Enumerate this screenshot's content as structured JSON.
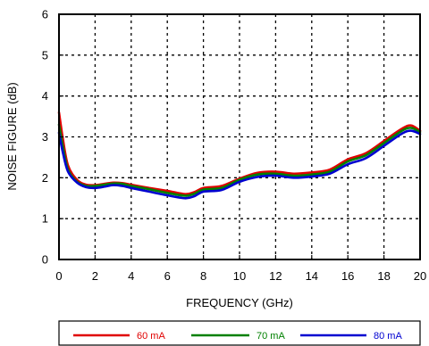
{
  "chart_data": {
    "type": "line",
    "xlabel": "FREQUENCY (GHz)",
    "ylabel": "NOISE FIGURE (dB)",
    "xlim": [
      0,
      20
    ],
    "ylim": [
      0,
      6
    ],
    "x_ticks": [
      "0",
      "2",
      "4",
      "6",
      "8",
      "10",
      "12",
      "14",
      "16",
      "18",
      "20"
    ],
    "y_ticks": [
      "0",
      "1",
      "2",
      "3",
      "4",
      "5",
      "6"
    ],
    "grid": true,
    "legend_position": "bottom",
    "x": [
      0,
      0.2,
      0.5,
      1,
      1.5,
      2,
      2.5,
      3,
      3.5,
      4,
      5,
      6,
      7,
      7.5,
      8,
      9,
      10,
      11,
      12,
      13,
      14,
      15,
      16,
      17,
      18,
      19,
      19.5,
      20
    ],
    "series": [
      {
        "name": "60 mA",
        "color": "#e00000",
        "values": [
          3.6,
          3.0,
          2.3,
          1.95,
          1.83,
          1.82,
          1.85,
          1.88,
          1.87,
          1.83,
          1.75,
          1.68,
          1.6,
          1.65,
          1.75,
          1.8,
          1.98,
          2.12,
          2.15,
          2.1,
          2.13,
          2.2,
          2.45,
          2.6,
          2.9,
          3.2,
          3.28,
          3.15
        ]
      },
      {
        "name": "70 mA",
        "color": "#008000",
        "values": [
          3.3,
          2.8,
          2.2,
          1.9,
          1.8,
          1.8,
          1.83,
          1.86,
          1.85,
          1.8,
          1.72,
          1.63,
          1.56,
          1.61,
          1.71,
          1.75,
          1.95,
          2.08,
          2.1,
          2.05,
          2.08,
          2.15,
          2.4,
          2.55,
          2.85,
          3.15,
          3.22,
          3.12
        ]
      },
      {
        "name": "80 mA",
        "color": "#0000d0",
        "values": [
          3.1,
          2.65,
          2.15,
          1.88,
          1.77,
          1.75,
          1.78,
          1.82,
          1.8,
          1.75,
          1.66,
          1.57,
          1.5,
          1.55,
          1.66,
          1.7,
          1.9,
          2.02,
          2.05,
          2.0,
          2.03,
          2.1,
          2.33,
          2.48,
          2.78,
          3.08,
          3.15,
          3.07
        ]
      }
    ]
  }
}
